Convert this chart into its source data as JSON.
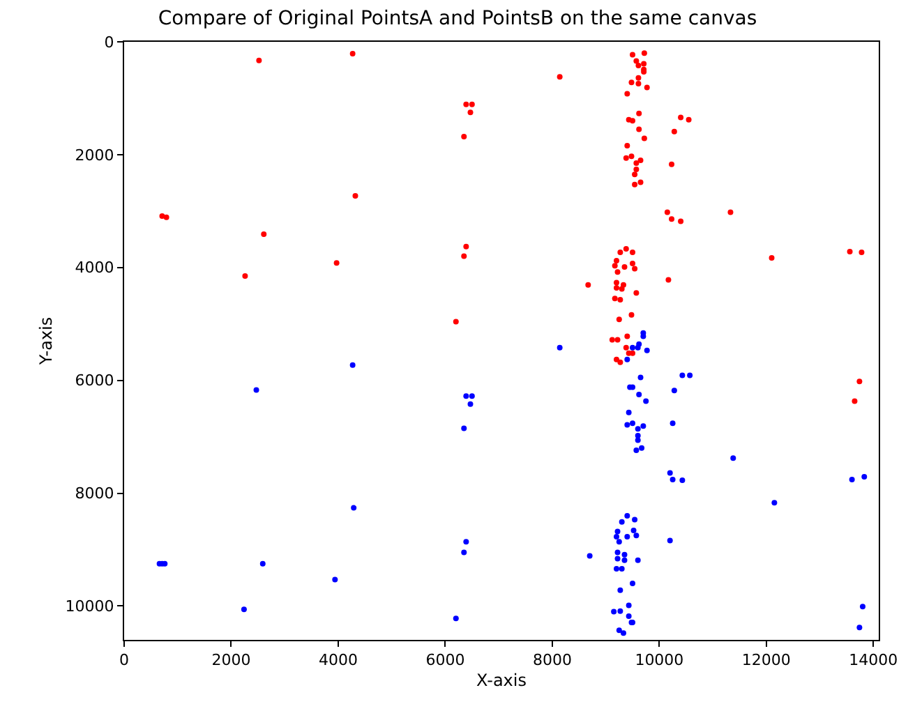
{
  "chart_data": {
    "type": "scatter",
    "title": "Compare of Original PointsA and PointsB on the same canvas",
    "xlabel": "X-axis",
    "ylabel": "Y-axis",
    "xlim": [
      0,
      14100
    ],
    "ylim": [
      10600,
      0
    ],
    "xticks": [
      0,
      2000,
      4000,
      6000,
      8000,
      10000,
      12000,
      14000
    ],
    "yticks": [
      0,
      2000,
      4000,
      6000,
      8000,
      10000
    ],
    "marker": "circle",
    "series": [
      {
        "color": "#ff0000",
        "x": [
          2520,
          4270,
          4320,
          710,
          790,
          2610,
          3970,
          2260,
          8140,
          6390,
          6500,
          6470,
          6350,
          6390,
          6350,
          8670,
          6200,
          9500,
          9720,
          9570,
          9610,
          9710,
          9710,
          9710,
          9480,
          9610,
          9610,
          9770,
          9400,
          9620,
          9430,
          9500,
          10400,
          10550,
          9620,
          10280,
          9720,
          9400,
          9380,
          9480,
          9650,
          9570,
          9570,
          9540,
          9650,
          9540,
          10230,
          10150,
          10230,
          10400,
          11330,
          9380,
          9270,
          9500,
          9200,
          9170,
          9500,
          9350,
          9540,
          9220,
          10170,
          12100,
          13560,
          13780,
          9200,
          9200,
          9330,
          9300,
          9570,
          9170,
          9270,
          9250,
          9480,
          9400,
          9120,
          9220,
          9380,
          9430,
          9500,
          9200,
          9270,
          13740,
          13650
        ],
        "values": [
          330,
          210,
          2730,
          3090,
          3110,
          3410,
          3920,
          4150,
          620,
          1110,
          1110,
          1250,
          1680,
          3630,
          3800,
          4310,
          4960,
          230,
          200,
          340,
          420,
          390,
          490,
          530,
          720,
          640,
          740,
          810,
          920,
          1270,
          1380,
          1400,
          1340,
          1380,
          1550,
          1590,
          1710,
          1840,
          2060,
          2030,
          2100,
          2150,
          2260,
          2350,
          2490,
          2530,
          2170,
          3020,
          3140,
          3180,
          3020,
          3670,
          3730,
          3730,
          3880,
          3970,
          3930,
          3990,
          4020,
          4080,
          4220,
          3830,
          3720,
          3730,
          4270,
          4360,
          4310,
          4380,
          4450,
          4550,
          4570,
          4920,
          4840,
          5220,
          5280,
          5280,
          5420,
          5520,
          5520,
          5630,
          5680,
          6020,
          6370
        ]
      },
      {
        "color": "#0000ff",
        "x": [
          4270,
          2470,
          4290,
          660,
          710,
          760,
          2590,
          3940,
          2240,
          8140,
          6390,
          6500,
          6470,
          6350,
          6390,
          6350,
          8700,
          6200,
          9700,
          9700,
          9620,
          9500,
          9600,
          9770,
          9400,
          9650,
          10430,
          10570,
          9450,
          9500,
          10280,
          9620,
          9750,
          9430,
          9400,
          9500,
          9700,
          10250,
          9600,
          9600,
          9600,
          9570,
          9670,
          11380,
          10200,
          10250,
          10430,
          13600,
          13830,
          12150,
          9400,
          9300,
          9540,
          9220,
          9520,
          9200,
          9400,
          9570,
          9250,
          10200,
          9220,
          9350,
          9220,
          9350,
          9600,
          9200,
          9300,
          9500,
          9270,
          9430,
          9150,
          9270,
          9430,
          9480,
          9500,
          9250,
          9330,
          13800,
          13740
        ],
        "values": [
          5730,
          6170,
          8260,
          9250,
          9250,
          9250,
          9250,
          9530,
          10060,
          5420,
          6280,
          6280,
          6420,
          6850,
          8860,
          9050,
          9110,
          10220,
          5160,
          5220,
          5360,
          5420,
          5420,
          5470,
          5630,
          5950,
          5910,
          5910,
          6120,
          6120,
          6180,
          6250,
          6370,
          6570,
          6790,
          6760,
          6810,
          6760,
          6860,
          6980,
          7060,
          7240,
          7200,
          7380,
          7640,
          7760,
          7770,
          7760,
          7710,
          8170,
          8400,
          8510,
          8470,
          8680,
          8660,
          8770,
          8770,
          8750,
          8860,
          8840,
          9050,
          9090,
          9160,
          9190,
          9190,
          9340,
          9340,
          9600,
          9720,
          9990,
          10100,
          10090,
          10180,
          10290,
          10290,
          10430,
          10480,
          10010,
          10380
        ]
      }
    ]
  }
}
